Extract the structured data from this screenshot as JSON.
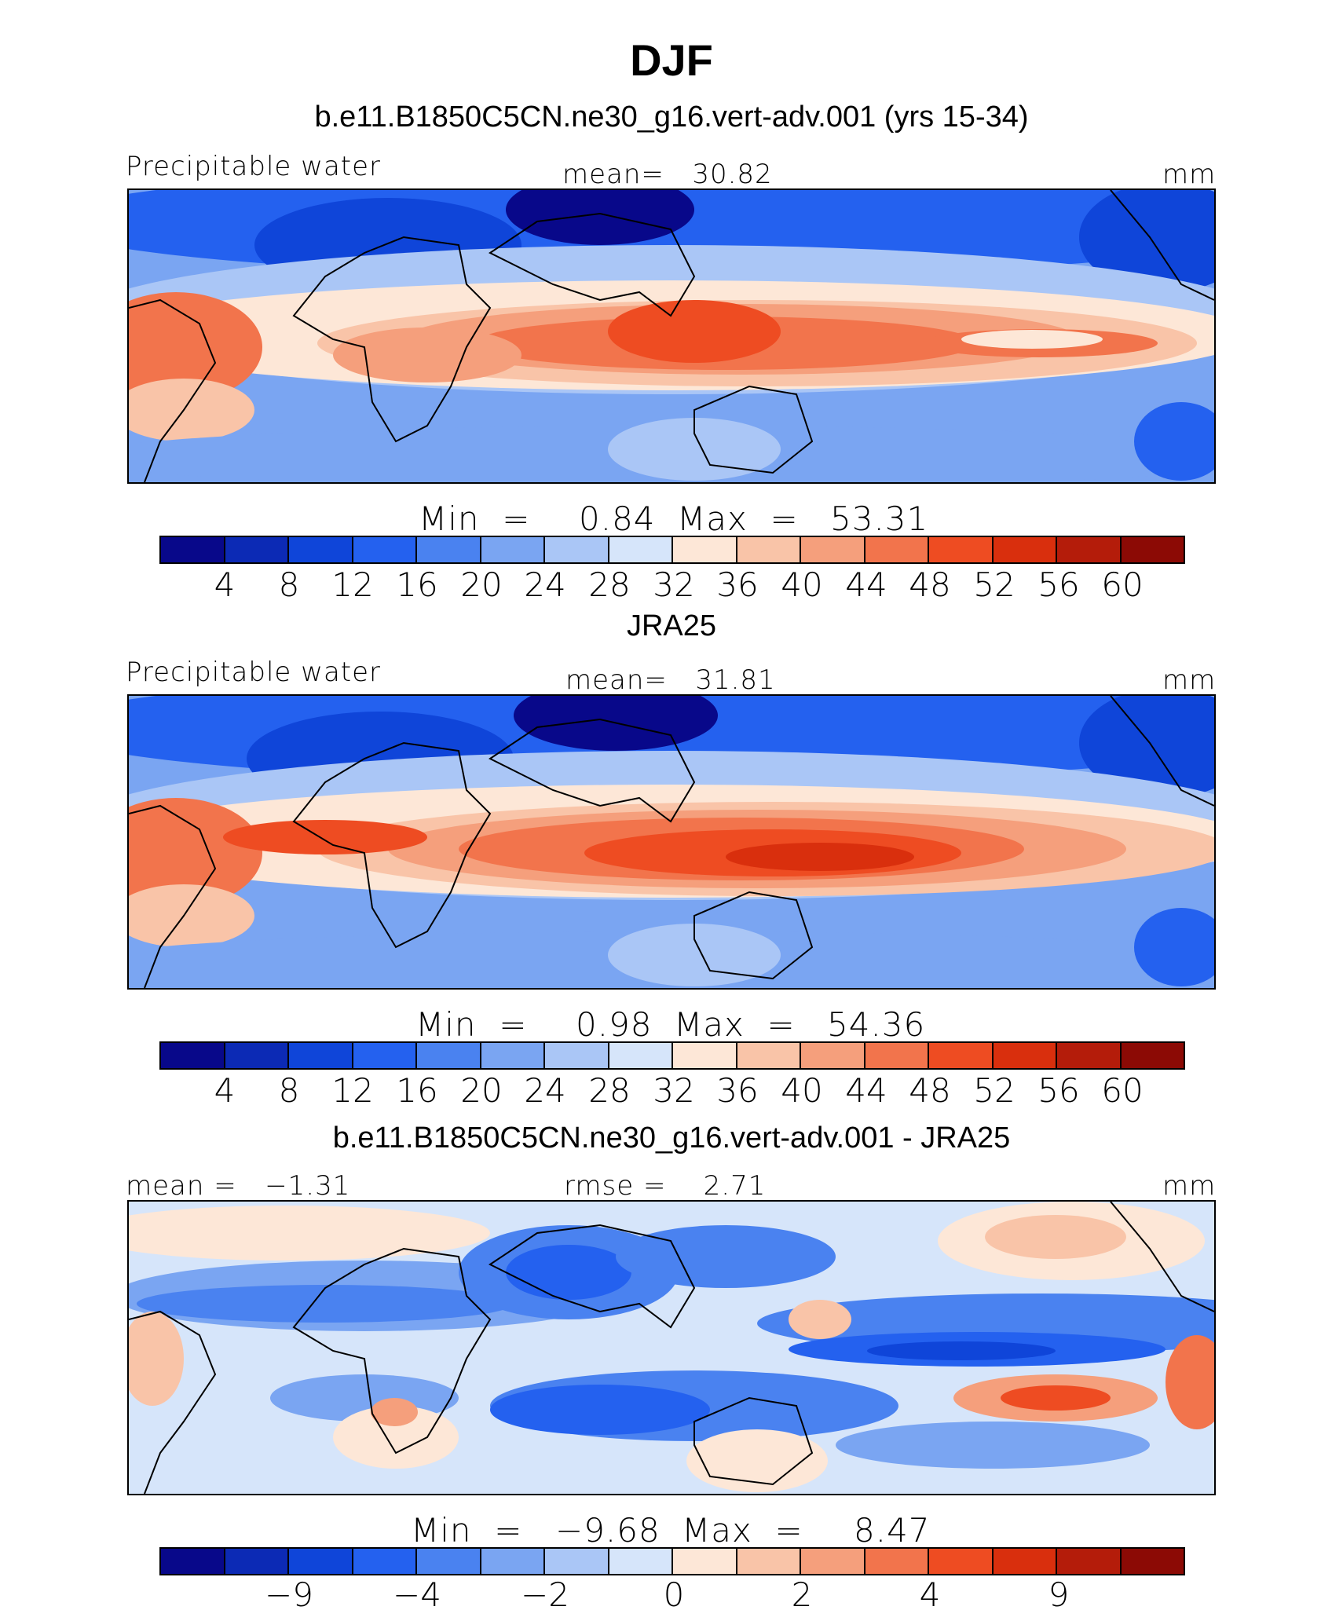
{
  "figure": {
    "title": "DJF"
  },
  "panels": [
    {
      "title": "b.e11.B1850C5CN.ne30_g16.vert-adv.001 (yrs 15-34)",
      "left_label": "Precipitable water",
      "center_label": "mean=   30.82",
      "right_label": "mm",
      "min_label": "Min  =",
      "min_value": "0.84",
      "max_label": "Max  =",
      "max_value": "53.31",
      "colorbar_ticks": [
        "4",
        "8",
        "12",
        "16",
        "20",
        "24",
        "28",
        "32",
        "36",
        "40",
        "44",
        "48",
        "52",
        "56",
        "60"
      ]
    },
    {
      "title": "JRA25",
      "left_label": "Precipitable water",
      "center_label": "mean=   31.81",
      "right_label": "mm",
      "min_label": "Min  =",
      "min_value": "0.98",
      "max_label": "Max  =",
      "max_value": "54.36",
      "colorbar_ticks": [
        "4",
        "8",
        "12",
        "16",
        "20",
        "24",
        "28",
        "32",
        "36",
        "40",
        "44",
        "48",
        "52",
        "56",
        "60"
      ]
    },
    {
      "title": "b.e11.B1850C5CN.ne30_g16.vert-adv.001 - JRA25",
      "left_label": "mean =   −1.31",
      "center_label": "rmse =    2.71",
      "right_label": "mm",
      "min_label": "Min  =",
      "min_value": "−9.68",
      "max_label": "Max  =",
      "max_value": "8.47",
      "colorbar_ticks": [
        "−9",
        "−4",
        "−2",
        "0",
        "2",
        "4",
        "9"
      ]
    }
  ],
  "colors": {
    "palette": [
      "#08088a",
      "#0c2ab5",
      "#0f45d9",
      "#2461ef",
      "#4a82f0",
      "#7aa5f2",
      "#aac6f6",
      "#d6e5fa",
      "#fde7d7",
      "#f9c4a8",
      "#f59f7c",
      "#f2744c",
      "#ee4c22",
      "#d92f0d",
      "#b41c0a",
      "#8c0a05"
    ]
  }
}
